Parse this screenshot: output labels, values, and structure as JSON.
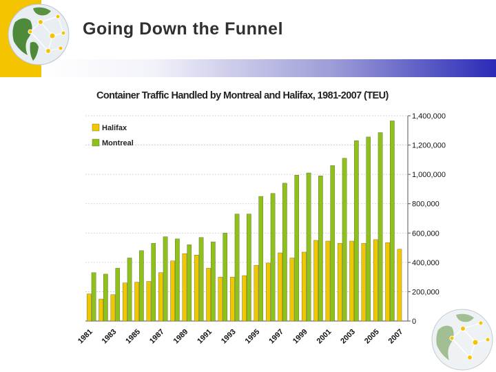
{
  "slide": {
    "title": "Going Down the Funnel"
  },
  "colors": {
    "halifax": "#f0c800",
    "montreal": "#8ec21a",
    "accent_yellow": "#f5c400",
    "accent_blue": "#2a2ab8"
  },
  "chart_data": {
    "type": "bar",
    "title": "Container Traffic Handled by Montreal and Halifax, 1981-2007 (TEU)",
    "xlabel": "",
    "ylabel": "",
    "ylim": [
      0,
      1400000
    ],
    "yticks": [
      0,
      200000,
      400000,
      600000,
      800000,
      1000000,
      1200000,
      1400000
    ],
    "ytick_labels": [
      "0",
      "200,000",
      "400,000",
      "600,000",
      "800,000",
      "1,000,000",
      "1,200,000",
      "1,400,000"
    ],
    "y_axis_side": "right",
    "legend_position": "top-left",
    "grid": true,
    "categories": [
      "1981",
      "1982",
      "1983",
      "1984",
      "1985",
      "1986",
      "1987",
      "1988",
      "1989",
      "1990",
      "1991",
      "1992",
      "1993",
      "1994",
      "1995",
      "1996",
      "1997",
      "1998",
      "1999",
      "2000",
      "2001",
      "2002",
      "2003",
      "2004",
      "2005",
      "2006",
      "2007"
    ],
    "xtick_labels": [
      "1981",
      "1983",
      "1985",
      "1987",
      "1989",
      "1991",
      "1993",
      "1995",
      "1997",
      "1999",
      "2001",
      "2003",
      "2005",
      "2007"
    ],
    "series": [
      {
        "name": "Halifax",
        "values": [
          185000,
          150000,
          180000,
          260000,
          265000,
          270000,
          330000,
          410000,
          460000,
          450000,
          360000,
          300000,
          300000,
          310000,
          380000,
          395000,
          465000,
          430000,
          470000,
          550000,
          545000,
          530000,
          545000,
          530000,
          555000,
          535000,
          490000
        ]
      },
      {
        "name": "Montreal",
        "values": [
          330000,
          320000,
          360000,
          430000,
          480000,
          530000,
          575000,
          560000,
          520000,
          570000,
          540000,
          600000,
          730000,
          730000,
          850000,
          870000,
          940000,
          995000,
          1010000,
          990000,
          1060000,
          1110000,
          1230000,
          1255000,
          1285000,
          1365000,
          0
        ]
      }
    ]
  }
}
